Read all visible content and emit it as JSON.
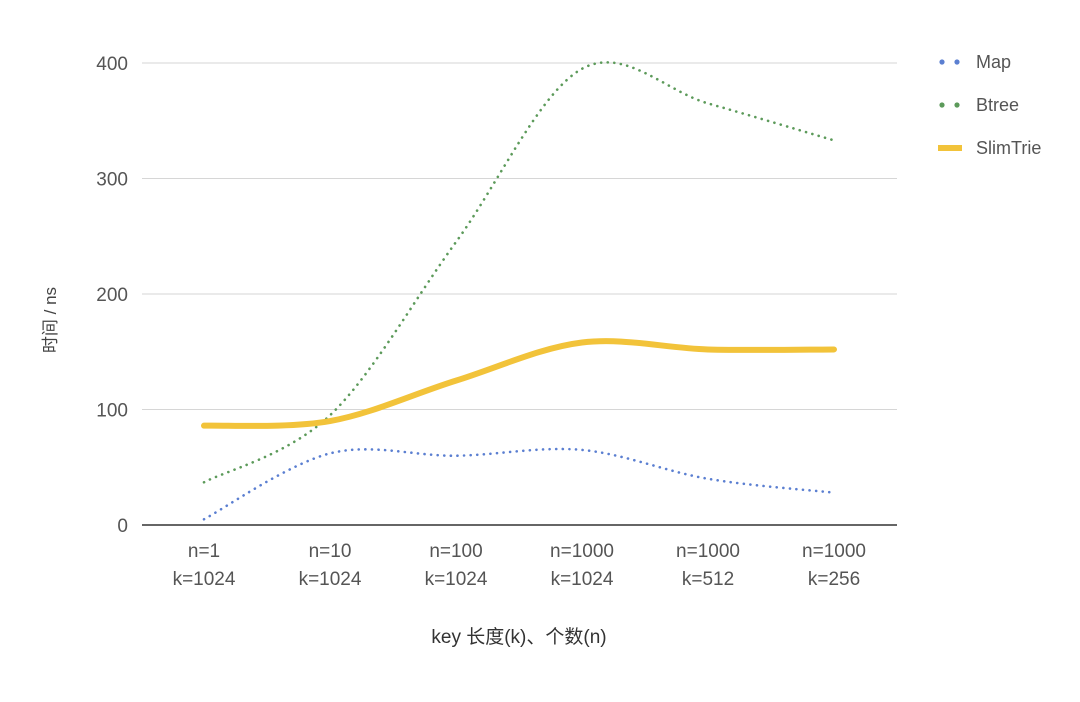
{
  "chart_data": {
    "type": "line",
    "title": "",
    "xlabel": "key 长度(k)、个数(n)",
    "ylabel": "时间 / ns",
    "ylim": [
      0,
      400
    ],
    "yticks": [
      0,
      100,
      200,
      300,
      400
    ],
    "grid": true,
    "legend_position": "right",
    "categories": [
      [
        "n=1",
        "k=1024"
      ],
      [
        "n=10",
        "k=1024"
      ],
      [
        "n=100",
        "k=1024"
      ],
      [
        "n=1000",
        "k=1024"
      ],
      [
        "n=1000",
        "k=512"
      ],
      [
        "n=1000",
        "k=256"
      ]
    ],
    "series": [
      {
        "name": "Map",
        "color": "#5b7fd1",
        "style": "dotted",
        "values": [
          5,
          62,
          60,
          65,
          40,
          28
        ]
      },
      {
        "name": "Btree",
        "color": "#5c9a5a",
        "style": "dotted",
        "values": [
          37,
          95,
          245,
          395,
          365,
          333
        ]
      },
      {
        "name": "SlimTrie",
        "color": "#f2c33a",
        "style": "solid",
        "values": [
          86,
          90,
          125,
          158,
          152,
          152
        ]
      }
    ]
  }
}
